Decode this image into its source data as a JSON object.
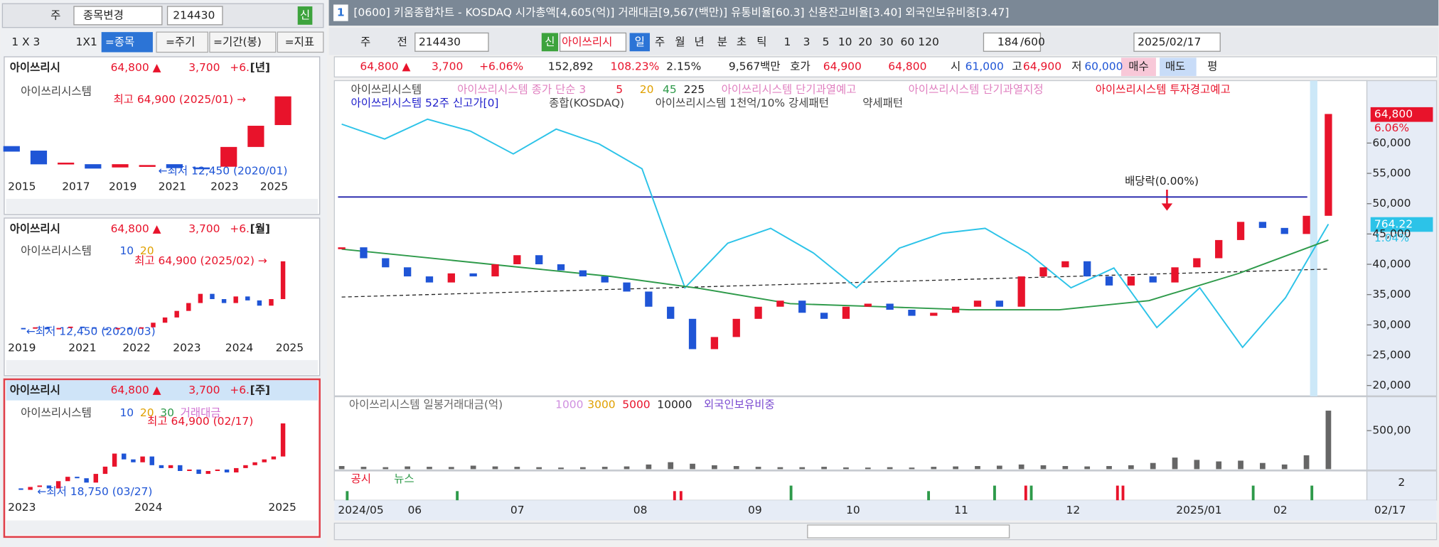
{
  "left": {
    "toolbar": [
      "주",
      "종목변경",
      "214430",
      "신"
    ],
    "toolbar2": [
      "1 X 3",
      "1X1",
      "=종목",
      "=주기",
      "=기간(봉)",
      "=지표"
    ],
    "panels": [
      {
        "name": "아이쓰리시",
        "price": "64,800 ▲",
        "change": "3,700",
        "pct": "+6.",
        "period": "[년]",
        "legend": [
          "아이쓰리시스템"
        ],
        "high": "최고 64,900 (2025/01) →",
        "low": "←최저 12,450 (2020/01)",
        "x_labels": [
          "2015",
          "2017",
          "2019",
          "2021",
          "2023",
          "2025"
        ],
        "ylim": [
          8500,
          71400
        ],
        "candles": [
          [
            29600,
            25700
          ],
          [
            26400,
            16700
          ],
          [
            17500,
            17900
          ],
          [
            16800,
            13700
          ],
          [
            14500,
            16800
          ],
          [
            16000,
            16200
          ],
          [
            16800,
            14000
          ],
          [
            14500,
            14300
          ],
          [
            15000,
            29000
          ],
          [
            29000,
            44000
          ],
          [
            44500,
            64800
          ]
        ]
      },
      {
        "name": "아이쓰리시",
        "price": "64,800 ▲",
        "change": "3,700",
        "pct": "+6.",
        "period": "[월]",
        "legend": [
          "아이쓰리시스템",
          "10",
          "20"
        ],
        "high": "최고 64,900 (2025/02) →",
        "low": "←최저 12,450 (2020/03)",
        "x_labels": [
          "2019",
          "2021",
          "2022",
          "2023",
          "2024",
          "2025"
        ],
        "ylim": [
          0,
          76800
        ],
        "closes": [
          14000,
          13500,
          14500,
          13000,
          14000,
          15000,
          14500,
          13500,
          13000,
          14000,
          13500,
          14500,
          18000,
          22000,
          27000,
          33000,
          40000,
          36000,
          33000,
          38000,
          35000,
          31000,
          36000,
          64800
        ]
      },
      {
        "name": "아이쓰리시",
        "price": "64,800 ▲",
        "change": "3,700",
        "pct": "+6.",
        "period": "[주]",
        "legend": [
          "아이쓰리시스템",
          "10",
          "20",
          "30",
          "거래대금"
        ],
        "high": "최고 64,900 (02/17)",
        "low": "←최저 18,750 (03/27)",
        "x_labels": [
          "2023",
          "2024",
          "2025"
        ],
        "ylim": [
          15600,
          69300
        ],
        "closes": [
          20000,
          19000,
          21000,
          22000,
          20000,
          25000,
          28000,
          27000,
          24000,
          30000,
          35000,
          44000,
          40000,
          38000,
          42000,
          36000,
          34000,
          36000,
          32000,
          33000,
          30000,
          32000,
          33000,
          31000,
          34000,
          36000,
          38000,
          40000,
          42000,
          64800
        ]
      }
    ]
  },
  "main": {
    "window_no": "1",
    "title": "[0600] 키움종합차트 - KOSDAQ 시가총액[4,605(억)] 거래대금[9,567(백만)] 유통비율[60.3] 신용잔고비율[3.40] 외국인보유비중[3.47]",
    "toolbar": [
      "주",
      "전",
      "214430",
      "신",
      "아이쓰리시",
      "일",
      "주",
      "월",
      "년",
      "분",
      "초",
      "틱",
      "1",
      "3",
      "5",
      "10",
      "20",
      "30",
      "60",
      "120",
      "184",
      "/600",
      "2025/02/17"
    ],
    "info": [
      "64,800 ▲",
      "3,700",
      "+6.06%",
      "152,892",
      "108.23%",
      "2.15%",
      "9,567백만",
      "호가",
      "64,900",
      "64,800",
      "시",
      "61,000",
      "고",
      "64,900",
      "저",
      "60,000",
      "매수",
      "매도",
      "평"
    ],
    "legend1": [
      "아이쓰리시스템",
      "아이쓰리시스템 종가 단순 3",
      "5",
      "20",
      "45",
      "225",
      "아이쓰리시스템 단기과열예고",
      "아이쓰리시스템 단기과열지정",
      "아이쓰리시스템 투자경고예고"
    ],
    "legend2": [
      "아이쓰리시스템 52주 신고가[0]",
      "종합(KOSDAQ)",
      "아이쓰리시스템 1천억/10% 강세패턴",
      "약세패턴"
    ],
    "ylim": [
      18600,
      70000
    ],
    "yticks": [
      {
        "value": 20000,
        "label": "20,000"
      },
      {
        "value": 25000,
        "label": "25,000"
      },
      {
        "value": 30000,
        "label": "30,000"
      },
      {
        "value": 35000,
        "label": "35,000"
      },
      {
        "value": 40000,
        "label": "40,000"
      },
      {
        "value": 45000,
        "label": "45,000"
      },
      {
        "value": 50000,
        "label": "50,000"
      },
      {
        "value": 55000,
        "label": "55,000"
      },
      {
        "value": 60000,
        "label": "60,000"
      }
    ],
    "close": [
      42800,
      41000,
      39500,
      38000,
      37000,
      38500,
      38000,
      40000,
      41500,
      40000,
      39000,
      38000,
      37000,
      35500,
      33000,
      31000,
      26000,
      28000,
      31000,
      33000,
      34000,
      32000,
      31000,
      33000,
      33500,
      32500,
      31500,
      32000,
      33000,
      34000,
      33000,
      38000,
      39500,
      40500,
      38000,
      36500,
      38000,
      37000,
      39500,
      41000,
      44000,
      47000,
      46000,
      45000,
      48000,
      64800
    ],
    "up_color": "#e8132b",
    "down_color": "#1f55d6",
    "ma60": {
      "color": "#2e9a4a",
      "values": [
        42500,
        41000,
        39500,
        38000,
        36000,
        33500,
        33000,
        32500,
        32500,
        34000,
        38500,
        44000
      ]
    },
    "trend": {
      "color": "#222222",
      "values": [
        34600,
        39200
      ]
    },
    "high52": {
      "color": "#2222aa",
      "value": 51100
    },
    "kosdaq": {
      "color": "#2cc3e8",
      "lim": [
        593,
        907
      ],
      "values": [
        865,
        850,
        870,
        858,
        835,
        860,
        845,
        820,
        700,
        745,
        760,
        735,
        700,
        740,
        755,
        760,
        735,
        700,
        720,
        660,
        700,
        640,
        690,
        764.22
      ],
      "value_labels": [
        "764.22"
      ],
      "change": "1.04%"
    },
    "price_label": "64,800",
    "price_change": "6.06%",
    "annotation": "배당락(0.00%)",
    "volume": {
      "legend": [
        "아이쓰리시스템 일봉거래대금(억)",
        "1000",
        "3000",
        "5000",
        "10000",
        "외국인보유비중"
      ],
      "color": "#666666",
      "ylim": [
        0,
        905
      ],
      "yticks": [
        {
          "value": 500,
          "label": "500,00"
        }
      ],
      "values": [
        40,
        30,
        25,
        35,
        30,
        28,
        45,
        35,
        30,
        25,
        20,
        25,
        30,
        35,
        60,
        90,
        70,
        50,
        40,
        30,
        25,
        25,
        30,
        22,
        20,
        25,
        20,
        30,
        35,
        40,
        45,
        60,
        50,
        40,
        35,
        40,
        50,
        80,
        150,
        120,
        100,
        110,
        80,
        60,
        180,
        760
      ]
    },
    "news": {
      "legend": [
        "공시",
        "뉴스"
      ],
      "ytick": 2
    },
    "dates": [
      "2024/05",
      "06",
      "07",
      "08",
      "09",
      "10",
      "11",
      "12",
      "2025/01",
      "02",
      "02/17"
    ]
  }
}
